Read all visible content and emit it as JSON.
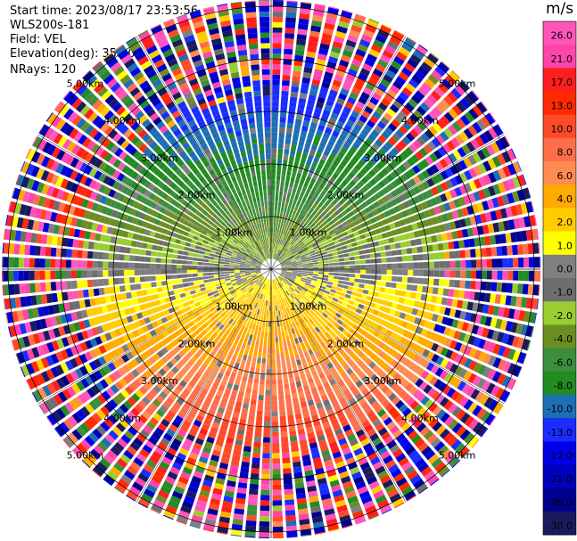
{
  "info": {
    "start_time_label": "Start time:",
    "start_time": "2023/08/17 23:53:56",
    "instrument": "WLS200s-181",
    "field_label": "Field:",
    "field": "VEL",
    "elevation_label": "Elevation(deg):",
    "elevation": "35.30",
    "nrays_label": "NRays:",
    "nrays": "120"
  },
  "chart_data": {
    "type": "heatmap",
    "projection": "polar-ppi",
    "field": "VEL",
    "unit": "m/s",
    "n_rays": 120,
    "range_rings": [
      "1.00km",
      "2.00km",
      "3.00km",
      "4.00km",
      "5.00km"
    ],
    "max_range_km": 5.3,
    "crosshair": true,
    "colorbar": {
      "title": "m/s",
      "ticks": [
        "26.0",
        "21.0",
        "17.0",
        "13.0",
        "10.0",
        "8.0",
        "6.0",
        "4.0",
        "2.0",
        "1.0",
        "0.0",
        "-1.0",
        "-2.0",
        "-4.0",
        "-6.0",
        "-8.0",
        "-10.0",
        "-13.0",
        "-17.0",
        "-21.0",
        "-26.0",
        "-30.0"
      ],
      "bins": [
        {
          "from": 26,
          "to": 30,
          "color": "#ff55bb"
        },
        {
          "from": 21,
          "to": 26,
          "color": "#ff44aa"
        },
        {
          "from": 17,
          "to": 21,
          "color": "#ff1e1e"
        },
        {
          "from": 13,
          "to": 17,
          "color": "#ff2a00"
        },
        {
          "from": 10,
          "to": 13,
          "color": "#ff4a2a"
        },
        {
          "from": 8,
          "to": 10,
          "color": "#ff6e4a"
        },
        {
          "from": 6,
          "to": 8,
          "color": "#ff8c50"
        },
        {
          "from": 4,
          "to": 6,
          "color": "#ffaa00"
        },
        {
          "from": 2,
          "to": 4,
          "color": "#ffcc00"
        },
        {
          "from": 1,
          "to": 2,
          "color": "#ffff00"
        },
        {
          "from": 0,
          "to": 1,
          "color": "#7f7f7f"
        },
        {
          "from": -1,
          "to": 0,
          "color": "#6e6e6e"
        },
        {
          "from": -2,
          "to": -1,
          "color": "#9acd32"
        },
        {
          "from": -4,
          "to": -2,
          "color": "#6b8e23"
        },
        {
          "from": -6,
          "to": -4,
          "color": "#3c8e3c"
        },
        {
          "from": -8,
          "to": -6,
          "color": "#228b22"
        },
        {
          "from": -10,
          "to": -8,
          "color": "#1e6eb4"
        },
        {
          "from": -13,
          "to": -10,
          "color": "#1a2cff"
        },
        {
          "from": -17,
          "to": -13,
          "color": "#0000e6"
        },
        {
          "from": -21,
          "to": -17,
          "color": "#0000c0"
        },
        {
          "from": -26,
          "to": -21,
          "color": "#000090"
        },
        {
          "from": -30,
          "to": -26,
          "color": "#1a1a60"
        }
      ]
    }
  }
}
